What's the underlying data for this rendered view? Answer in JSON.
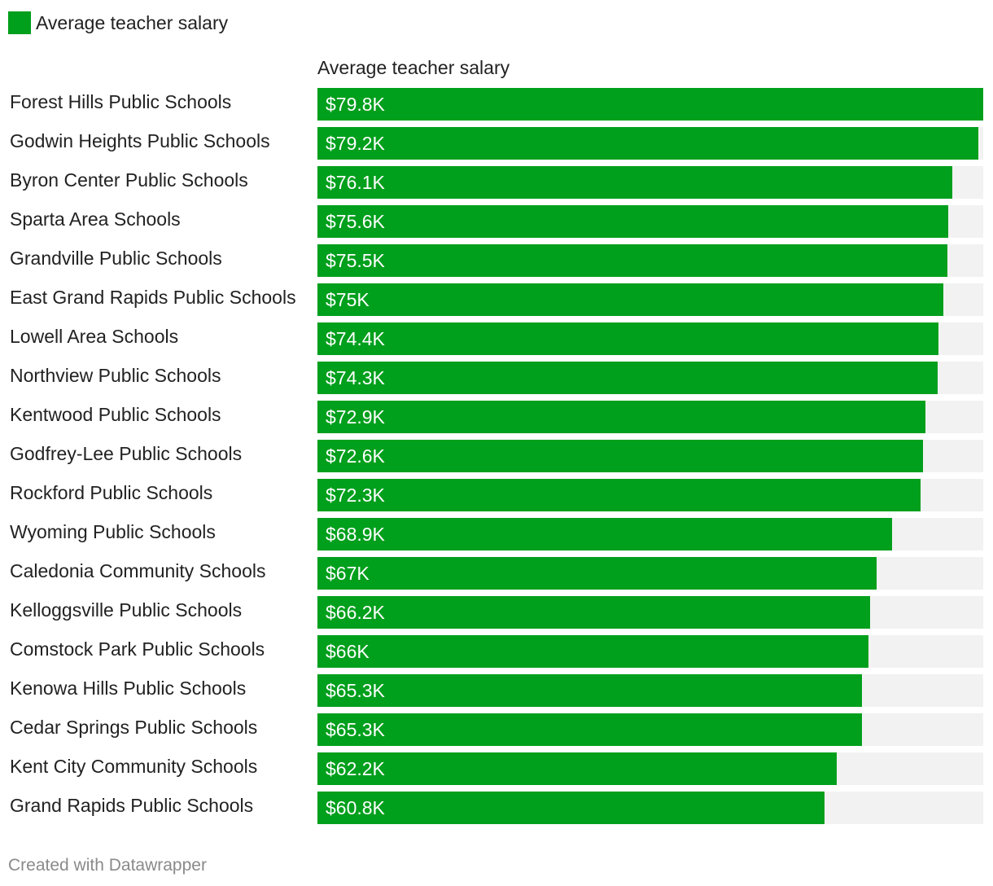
{
  "legend": {
    "label": "Average teacher salary",
    "color": "#009f1c"
  },
  "header": {
    "column_title": "Average teacher salary"
  },
  "footer": {
    "credit": "Created with Datawrapper"
  },
  "colors": {
    "bar": "#009f1c",
    "track": "#f2f2f2",
    "value_text": "#ffffff"
  },
  "chart_data": {
    "type": "bar",
    "orientation": "horizontal",
    "title": "Average teacher salary",
    "xlabel": "",
    "ylabel": "",
    "xlim": [
      0,
      79.8
    ],
    "unit": "thousand USD",
    "categories": [
      "Forest Hills Public Schools",
      "Godwin Heights Public Schools",
      "Byron Center Public Schools",
      "Sparta Area Schools",
      "Grandville Public Schools",
      "East Grand Rapids Public Schools",
      "Lowell Area Schools",
      "Northview Public Schools",
      "Kentwood Public Schools",
      "Godfrey-Lee Public Schools",
      "Rockford Public Schools",
      "Wyoming Public Schools",
      "Caledonia Community Schools",
      "Kelloggsville Public Schools",
      "Comstock Park Public Schools",
      "Kenowa Hills Public Schools",
      "Cedar Springs Public Schools",
      "Kent City Community Schools",
      "Grand Rapids Public Schools"
    ],
    "values": [
      79.8,
      79.2,
      76.1,
      75.6,
      75.5,
      75.0,
      74.4,
      74.3,
      72.9,
      72.6,
      72.3,
      68.9,
      67.0,
      66.2,
      66.0,
      65.3,
      65.3,
      62.2,
      60.8
    ],
    "value_labels": [
      "$79.8K",
      "$79.2K",
      "$76.1K",
      "$75.6K",
      "$75.5K",
      "$75K",
      "$74.4K",
      "$74.3K",
      "$72.9K",
      "$72.6K",
      "$72.3K",
      "$68.9K",
      "$67K",
      "$66.2K",
      "$66K",
      "$65.3K",
      "$65.3K",
      "$62.2K",
      "$60.8K"
    ]
  }
}
